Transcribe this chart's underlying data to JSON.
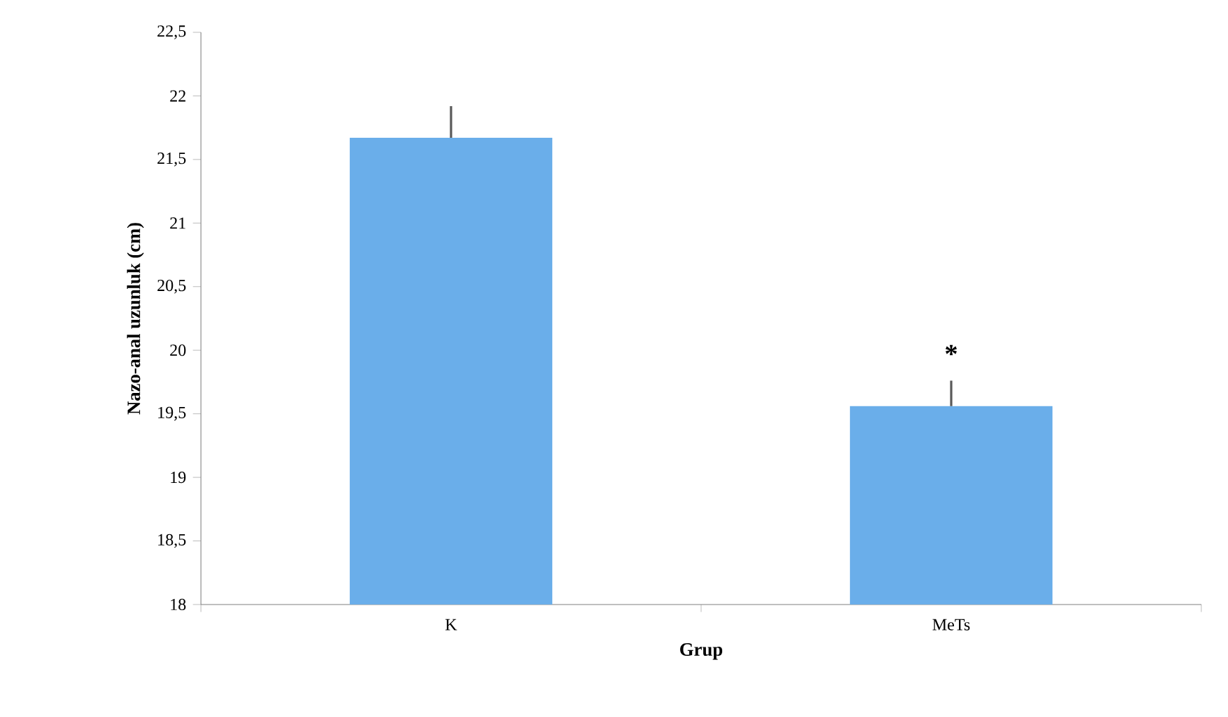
{
  "chart_data": {
    "type": "bar",
    "xlabel": "Grup",
    "ylabel": "Nazo-anal uzunluk (cm)",
    "categories": [
      "K",
      "MeTs"
    ],
    "values": [
      21.67,
      19.56
    ],
    "errors": [
      [
        21.67,
        21.92
      ],
      [
        19.56,
        19.76
      ]
    ],
    "color": "#6aaeea",
    "ylim": [
      18,
      22.5
    ],
    "yticks": [
      18,
      {
        "value": 18.5,
        "label": "18,5"
      },
      19,
      {
        "value": 19.5,
        "label": "19,5"
      },
      20,
      {
        "value": 20.5,
        "label": "20,5"
      },
      21,
      {
        "value": 21.5,
        "label": "21,5"
      },
      22,
      {
        "value": 22.5,
        "label": "22,5"
      }
    ],
    "grid": false,
    "annotations": [
      {
        "text": "*",
        "x": "MeTs",
        "y": 19.76
      }
    ]
  }
}
